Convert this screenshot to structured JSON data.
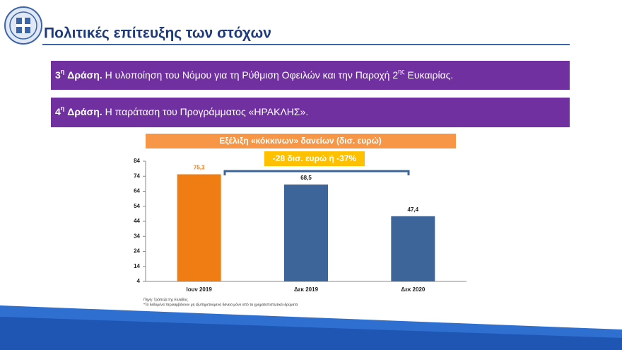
{
  "header": {
    "title": "Πολιτικές επίτευξης των στόχων"
  },
  "actions": [
    {
      "number": "3",
      "ordinal": "η",
      "label": "Δράση.",
      "text": "Η υλοποίηση του Νόμου για τη Ρύθμιση Οφειλών και την Παροχή 2",
      "text_sup": "ης",
      "text_end": "Ευκαιρίας."
    },
    {
      "number": "4",
      "ordinal": "η",
      "label": "Δράση.",
      "text": "Η παράταση του Προγράμματος «ΗΡΑΚΛΗΣ»."
    }
  ],
  "chart_data": {
    "type": "bar",
    "title": "Εξέλιξη «κόκκινων» δανείων (δισ. ευρώ)",
    "annotation": "-28 δισ. ευρώ ή -37%",
    "categories": [
      "Ιουν 2019",
      "Δεκ 2019",
      "Δεκ 2020"
    ],
    "values": [
      75.3,
      68.5,
      47.4
    ],
    "value_labels": [
      "75,3",
      "68,5",
      "47,4"
    ],
    "colors": [
      "#f07d14",
      "#3e6599",
      "#3e6599"
    ],
    "ylim": [
      4,
      84
    ],
    "yticks": [
      4,
      14,
      24,
      34,
      44,
      54,
      64,
      74,
      84
    ],
    "source": "Πηγή: Τράπεζα της Ελλάδος",
    "note": "*Τα δεδομένα περιλαμβάνουν μη εξυπηρετούμενα δάνεια μόνο από τα χρηματοπιστωτικά ιδρύματα"
  }
}
